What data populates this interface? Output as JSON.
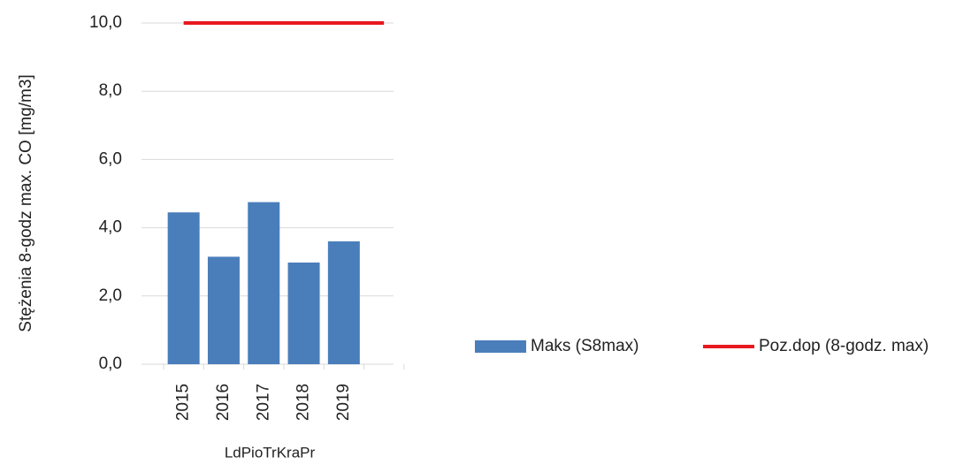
{
  "chart_data": {
    "type": "bar",
    "categories": [
      "2015",
      "2016",
      "2017",
      "2018",
      "2019",
      null
    ],
    "series": [
      {
        "name": "Maks (S8max)",
        "color": "#4a7ebb",
        "type": "bar",
        "values": [
          4.45,
          3.15,
          4.75,
          2.98,
          3.6,
          null
        ]
      },
      {
        "name": "Poz.dop (8-godz. max)",
        "color": "#e8191f",
        "type": "line",
        "values": [
          10,
          10,
          10,
          10,
          10,
          10
        ]
      }
    ],
    "y_label": "Stężenia 8-godz max. CO [mg/m3]",
    "x_label": "LdPioTrKraPr",
    "ylim": [
      0,
      10
    ],
    "yticks": [
      {
        "value": 0,
        "label": "0,0"
      },
      {
        "value": 2,
        "label": "2,0"
      },
      {
        "value": 4,
        "label": "4,0"
      },
      {
        "value": 6,
        "label": "6,0"
      },
      {
        "value": 8,
        "label": "8,0"
      },
      {
        "value": 10,
        "label": "10,0"
      }
    ],
    "grid": true,
    "legend": "right"
  }
}
